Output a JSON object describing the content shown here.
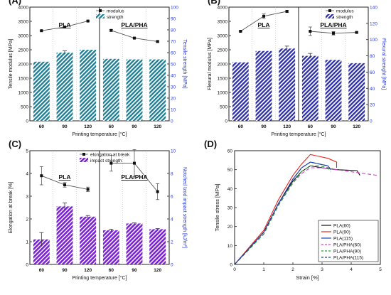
{
  "chart_data": [
    {
      "panel": "(A)",
      "type": "bar+line",
      "categories": [
        "60",
        "90",
        "120",
        "60",
        "90",
        "120"
      ],
      "group_labels": [
        "PLA",
        "PLA/PHA"
      ],
      "xlabel": "Printing temperature [°C]",
      "ylabel": "Tensile modulus [MPa]",
      "ylabel_right": "Tensile strength [MPa]",
      "ylim": [
        0,
        4000
      ],
      "yticks": [
        0,
        500,
        1000,
        1500,
        2000,
        2500,
        3000,
        3500,
        4000
      ],
      "ylim_right": [
        0,
        100
      ],
      "yticks_right": [
        0,
        10,
        20,
        30,
        40,
        50,
        60,
        70,
        80,
        90,
        100
      ],
      "legend_position": "top-center",
      "bar_color": "#1a7d94",
      "line_color": "#555555",
      "line_series": {
        "name": "modulus",
        "values": [
          3170,
          3300,
          3510,
          3180,
          2910,
          2790
        ],
        "errors": [
          20,
          20,
          20,
          30,
          20,
          30
        ]
      },
      "bar_series": {
        "name": "strength",
        "values": [
          52,
          60,
          62.5,
          54.5,
          54,
          54
        ],
        "errors": [
          0,
          1.5,
          0,
          0,
          0,
          0
        ]
      }
    },
    {
      "panel": "(B)",
      "type": "bar+line",
      "categories": [
        "60",
        "90",
        "120",
        "60",
        "90",
        "120"
      ],
      "group_labels": [
        "PLA",
        "PLA/PHA"
      ],
      "xlabel": "Printing temperature [°C]",
      "ylabel": "Flexural modulus [MPa]",
      "ylabel_right": "Flexural strenght [MPa]",
      "ylim": [
        0,
        4000
      ],
      "yticks": [
        0,
        500,
        1000,
        1500,
        2000,
        2500,
        3000,
        3500,
        4000
      ],
      "ylim_right": [
        0,
        140
      ],
      "yticks_right": [
        0,
        20,
        40,
        60,
        80,
        100,
        120,
        140
      ],
      "legend_position": "top-right",
      "bar_color": "#2c2fa8",
      "line_color": "#555555",
      "line_series": {
        "name": "modulus",
        "values": [
          3150,
          3680,
          3850,
          3150,
          3080,
          3110
        ],
        "errors": [
          20,
          80,
          30,
          150,
          60,
          20
        ]
      },
      "bar_series": {
        "name": "strength",
        "values": [
          72,
          86,
          89,
          80,
          75,
          71
        ],
        "errors": [
          0,
          0,
          3,
          3,
          0,
          0
        ]
      }
    },
    {
      "panel": "(C)",
      "type": "bar+line",
      "categories": [
        "60",
        "90",
        "120",
        "60",
        "90",
        "120"
      ],
      "group_labels": [
        "PLA",
        "PLA/PHA"
      ],
      "xlabel": "Printing temperature [°C]",
      "ylabel": "Elongation at break [%]",
      "ylabel_right": "Notched Izod impact strength [kJ/m²]",
      "ylim": [
        0,
        5
      ],
      "yticks": [
        0,
        1,
        2,
        3,
        4,
        5
      ],
      "ylim_right": [
        0,
        10
      ],
      "yticks_right": [
        0,
        2,
        4,
        6,
        8,
        10
      ],
      "legend_position": "top-right",
      "bar_color": "#7b22d4",
      "line_color": "#555555",
      "line_series": {
        "name": "elongation at break",
        "values": [
          3.9,
          3.5,
          3.3,
          4.45,
          4.45,
          3.2
        ],
        "errors": [
          0.4,
          0.1,
          0.1,
          0.35,
          0.6,
          0.35
        ]
      },
      "bar_series": {
        "name": "impact strength",
        "values": [
          2.2,
          5.1,
          4.2,
          3.0,
          3.6,
          3.1
        ],
        "errors": [
          0.6,
          0.3,
          0.1,
          0.1,
          0.05,
          0.05
        ]
      }
    },
    {
      "panel": "(D)",
      "type": "line",
      "xlabel": "Strain [%]",
      "ylabel": "Tensile stress [MPa]",
      "xlim": [
        0,
        5
      ],
      "xticks": [
        0,
        1,
        2,
        3,
        4,
        5
      ],
      "ylim": [
        0,
        60
      ],
      "yticks": [
        0,
        10,
        20,
        30,
        40,
        50,
        60
      ],
      "legend_position": "bottom-right",
      "series": [
        {
          "name": "PLA(60)",
          "color": "#111111",
          "dash": "none",
          "points": [
            [
              0,
              0
            ],
            [
              1,
              17
            ],
            [
              1.5,
              32
            ],
            [
              2,
              44
            ],
            [
              2.3,
              49
            ],
            [
              2.6,
              52
            ],
            [
              3,
              51
            ],
            [
              3.5,
              50
            ],
            [
              4.2,
              49.5
            ],
            [
              4.3,
              47
            ]
          ]
        },
        {
          "name": "PLA(90)",
          "color": "#e8241c",
          "dash": "none",
          "points": [
            [
              0,
              0
            ],
            [
              1,
              18
            ],
            [
              1.5,
              34
            ],
            [
              2,
              47
            ],
            [
              2.3,
              53
            ],
            [
              2.6,
              58
            ],
            [
              2.9,
              57
            ],
            [
              3.2,
              56
            ],
            [
              3.5,
              54
            ],
            [
              3.5,
              51
            ]
          ]
        },
        {
          "name": "PLA(115)",
          "color": "#2040c0",
          "dash": "none",
          "points": [
            [
              0,
              0
            ],
            [
              1,
              17
            ],
            [
              1.5,
              32
            ],
            [
              2,
              45
            ],
            [
              2.3,
              51
            ],
            [
              2.6,
              54
            ],
            [
              2.9,
              53
            ],
            [
              3.2,
              52
            ],
            [
              3.3,
              50
            ]
          ]
        },
        {
          "name": "PLA/PHA(60)",
          "color": "#d040d0",
          "dash": "5,3",
          "points": [
            [
              0,
              0
            ],
            [
              1,
              16
            ],
            [
              1.5,
              31
            ],
            [
              2,
              43
            ],
            [
              2.3,
              48
            ],
            [
              2.6,
              51
            ],
            [
              3,
              51
            ],
            [
              3.5,
              50
            ],
            [
              4.2,
              48.5
            ],
            [
              4.9,
              47
            ]
          ]
        },
        {
          "name": "PLA/PHA(90)",
          "color": "#22a035",
          "dash": "5,3",
          "points": [
            [
              0,
              0
            ],
            [
              1,
              16
            ],
            [
              1.5,
              31
            ],
            [
              2,
              43
            ],
            [
              2.3,
              49
            ],
            [
              2.6,
              52
            ],
            [
              2.9,
              52
            ],
            [
              3.2,
              51
            ],
            [
              3.3,
              49
            ]
          ]
        },
        {
          "name": "PLA/PHA(115)",
          "color": "#1d3a96",
          "dash": "5,3",
          "points": [
            [
              0,
              0
            ],
            [
              1,
              17
            ],
            [
              1.5,
              32
            ],
            [
              2,
              45
            ],
            [
              2.3,
              51
            ],
            [
              2.6,
              54
            ],
            [
              2.9,
              53
            ],
            [
              3.2,
              52
            ],
            [
              3.3,
              50
            ]
          ]
        }
      ]
    }
  ]
}
